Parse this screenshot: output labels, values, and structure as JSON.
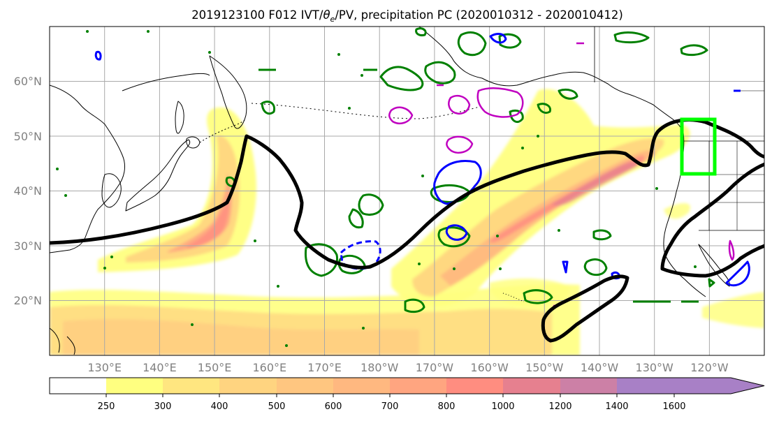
{
  "title": {
    "prefix": "2019123100 F012 IVT/",
    "theta_symbol": "θ",
    "theta_sub": "e",
    "suffix": "/PV, precipitation PC (2020010312 - 2020010412)"
  },
  "map": {
    "projection": "equirectangular",
    "lon_range": [
      120,
      250
    ],
    "lat_range": [
      10,
      70
    ],
    "grid": true,
    "grid_lons": [
      130,
      140,
      150,
      160,
      170,
      180,
      190,
      200,
      210,
      220,
      230,
      240
    ],
    "grid_lats": [
      20,
      30,
      40,
      50,
      60
    ],
    "lat_labels": [
      {
        "lat": 60,
        "text": "60°N"
      },
      {
        "lat": 50,
        "text": "50°N"
      },
      {
        "lat": 40,
        "text": "40°N"
      },
      {
        "lat": 30,
        "text": "30°N"
      },
      {
        "lat": 20,
        "text": "20°N"
      }
    ],
    "lon_labels": [
      {
        "lon": 130,
        "text": "130°E"
      },
      {
        "lon": 140,
        "text": "140°E"
      },
      {
        "lon": 150,
        "text": "150°E"
      },
      {
        "lon": 160,
        "text": "160°E"
      },
      {
        "lon": 170,
        "text": "170°E"
      },
      {
        "lon": 180,
        "text": "180°W"
      },
      {
        "lon": 190,
        "text": "170°W"
      },
      {
        "lon": 200,
        "text": "160°W"
      },
      {
        "lon": 210,
        "text": "150°W"
      },
      {
        "lon": 220,
        "text": "140°W"
      },
      {
        "lon": 230,
        "text": "130°W"
      },
      {
        "lon": 240,
        "text": "120°W"
      }
    ],
    "highlight_box": {
      "lon_min": 233,
      "lon_max": 239,
      "lat_min": 43,
      "lat_max": 53,
      "color": "#00ff00"
    },
    "colors": {
      "grid": "#a9a9a9",
      "coast": "#000000",
      "pv_line": "#000000",
      "green_contour": "#008000",
      "blue_contour": "#0000ff",
      "magenta_contour": "#c000c0"
    }
  },
  "colorbar": {
    "levels": [
      250,
      300,
      400,
      500,
      600,
      700,
      800,
      1000,
      1200,
      1400,
      1600
    ],
    "tick_labels": [
      "250",
      "300",
      "400",
      "500",
      "600",
      "700",
      "800",
      "1000",
      "1200",
      "1400",
      "1600"
    ],
    "colors": [
      "#ffffff",
      "#ffff80",
      "#ffe680",
      "#ffd480",
      "#ffc680",
      "#ffb880",
      "#ffa580",
      "#ff8d80",
      "#e6808f",
      "#cc80a6",
      "#a880c6"
    ],
    "extend": "max"
  }
}
